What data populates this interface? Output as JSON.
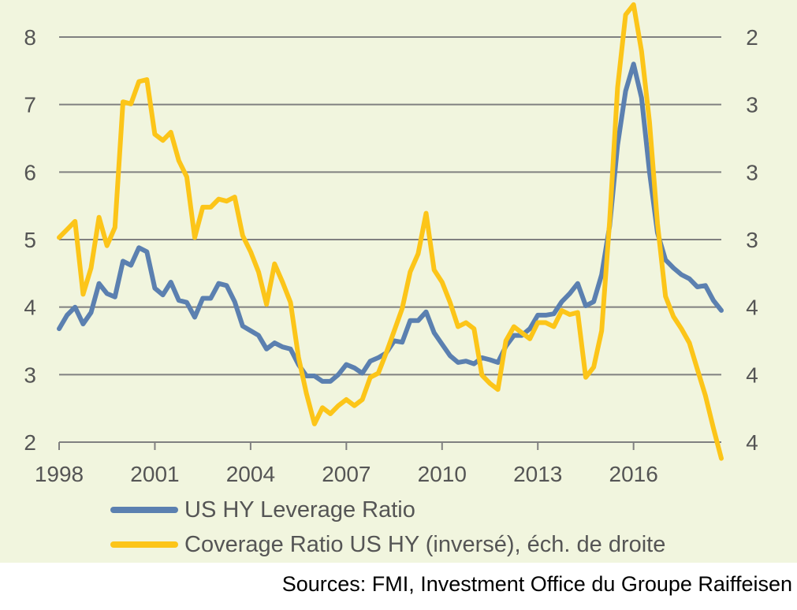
{
  "chart_data": {
    "type": "line",
    "title": "",
    "xlabel": "",
    "ylabel": "",
    "x_ticks": [
      "1998",
      "2001",
      "2004",
      "2007",
      "2010",
      "2013",
      "2016"
    ],
    "x_range": [
      1998,
      2018.75
    ],
    "y_left": {
      "ticks": [
        "8",
        "7",
        "6",
        "5",
        "4",
        "3",
        "2"
      ],
      "range": [
        2,
        8
      ]
    },
    "y_right": {
      "ticks": [
        "2",
        "3",
        "3",
        "3",
        "4",
        "4",
        "4"
      ],
      "range_top_to_bottom": [
        2,
        4
      ],
      "inverted": true
    },
    "grid": true,
    "legend_position": "bottom",
    "series": [
      {
        "name": "US HY Leverage Ratio",
        "axis": "left",
        "color": "#5b80b0",
        "x": [
          1998.0,
          1998.25,
          1998.5,
          1998.75,
          1999.0,
          1999.25,
          1999.5,
          1999.75,
          2000.0,
          2000.25,
          2000.5,
          2000.75,
          2001.0,
          2001.25,
          2001.5,
          2001.75,
          2002.0,
          2002.25,
          2002.5,
          2002.75,
          2003.0,
          2003.25,
          2003.5,
          2003.75,
          2004.0,
          2004.25,
          2004.5,
          2004.75,
          2005.0,
          2005.25,
          2005.5,
          2005.75,
          2006.0,
          2006.25,
          2006.5,
          2006.75,
          2007.0,
          2007.25,
          2007.5,
          2007.75,
          2008.0,
          2008.25,
          2008.5,
          2008.75,
          2009.0,
          2009.25,
          2009.5,
          2009.75,
          2010.0,
          2010.25,
          2010.5,
          2010.75,
          2011.0,
          2011.25,
          2011.5,
          2011.75,
          2012.0,
          2012.25,
          2012.5,
          2012.75,
          2013.0,
          2013.25,
          2013.5,
          2013.75,
          2014.0,
          2014.25,
          2014.5,
          2014.75,
          2015.0,
          2015.25,
          2015.5,
          2015.75,
          2016.0,
          2016.25,
          2016.5,
          2016.75,
          2017.0,
          2017.25,
          2017.5,
          2017.75,
          2018.0,
          2018.25,
          2018.5,
          2018.75
        ],
        "values": [
          3.68,
          3.88,
          4.0,
          3.75,
          3.92,
          4.35,
          4.2,
          4.15,
          4.68,
          4.62,
          4.88,
          4.82,
          4.28,
          4.18,
          4.37,
          4.1,
          4.07,
          3.85,
          4.13,
          4.13,
          4.35,
          4.32,
          4.08,
          3.72,
          3.65,
          3.58,
          3.38,
          3.47,
          3.41,
          3.38,
          3.15,
          2.98,
          2.98,
          2.9,
          2.9,
          3.0,
          3.15,
          3.1,
          3.02,
          3.2,
          3.25,
          3.32,
          3.5,
          3.48,
          3.8,
          3.8,
          3.93,
          3.62,
          3.45,
          3.28,
          3.18,
          3.2,
          3.16,
          3.25,
          3.22,
          3.18,
          3.42,
          3.58,
          3.58,
          3.68,
          3.88,
          3.88,
          3.9,
          4.08,
          4.2,
          4.35,
          4.02,
          4.08,
          4.48,
          5.2,
          6.4,
          7.2,
          7.6,
          7.1,
          6.0,
          5.1,
          4.7,
          4.58,
          4.48,
          4.42,
          4.3,
          4.32,
          4.1,
          3.95
        ]
      },
      {
        "name": "Coverage Ratio US HY (inversé), éch. de droite",
        "axis": "right",
        "color": "#fcc519",
        "x": [
          1998.0,
          1998.25,
          1998.5,
          1998.75,
          1999.0,
          1999.25,
          1999.5,
          1999.75,
          2000.0,
          2000.25,
          2000.5,
          2000.75,
          2001.0,
          2001.25,
          2001.5,
          2001.75,
          2002.0,
          2002.25,
          2002.5,
          2002.75,
          2003.0,
          2003.25,
          2003.5,
          2003.75,
          2004.0,
          2004.25,
          2004.5,
          2004.75,
          2005.0,
          2005.25,
          2005.5,
          2005.75,
          2006.0,
          2006.25,
          2006.5,
          2006.75,
          2007.0,
          2007.25,
          2007.5,
          2007.75,
          2008.0,
          2008.25,
          2008.5,
          2008.75,
          2009.0,
          2009.25,
          2009.5,
          2009.75,
          2010.0,
          2010.25,
          2010.5,
          2010.75,
          2011.0,
          2011.25,
          2011.5,
          2011.75,
          2012.0,
          2012.25,
          2012.5,
          2012.75,
          2013.0,
          2013.25,
          2013.5,
          2013.75,
          2014.0,
          2014.25,
          2014.5,
          2014.75,
          2015.0,
          2015.25,
          2015.5,
          2015.75,
          2016.0,
          2016.25,
          2016.5,
          2016.75,
          2017.0,
          2017.25,
          2017.5,
          2017.75,
          2018.0,
          2018.25,
          2018.5,
          2018.75
        ],
        "values": [
          2.99,
          2.95,
          2.91,
          3.27,
          3.14,
          2.89,
          3.03,
          2.94,
          2.32,
          2.33,
          2.22,
          2.21,
          2.48,
          2.51,
          2.47,
          2.61,
          2.69,
          2.99,
          2.84,
          2.84,
          2.8,
          2.81,
          2.79,
          2.98,
          3.06,
          3.16,
          3.32,
          3.12,
          3.21,
          3.31,
          3.58,
          3.76,
          3.91,
          3.83,
          3.86,
          3.82,
          3.79,
          3.82,
          3.79,
          3.68,
          3.66,
          3.56,
          3.45,
          3.34,
          3.16,
          3.07,
          2.87,
          3.15,
          3.21,
          3.31,
          3.43,
          3.41,
          3.44,
          3.67,
          3.71,
          3.74,
          3.5,
          3.43,
          3.46,
          3.49,
          3.41,
          3.41,
          3.43,
          3.35,
          3.37,
          3.36,
          3.68,
          3.63,
          3.45,
          2.91,
          2.25,
          1.89,
          1.84,
          2.07,
          2.42,
          2.92,
          3.28,
          3.38,
          3.44,
          3.51,
          3.64,
          3.77,
          3.93,
          4.08
        ]
      }
    ]
  },
  "legend": {
    "items": [
      {
        "label": "US HY Leverage Ratio",
        "color": "#5b80b0"
      },
      {
        "label": "Coverage Ratio US HY (inversé), éch. de droite",
        "color": "#fcc519"
      }
    ]
  },
  "source_note": "Sources: FMI, Investment Office du Groupe Raiffeisen",
  "colors": {
    "background_panel": "#f1f5de",
    "grid": "#808080",
    "text": "#555555"
  }
}
